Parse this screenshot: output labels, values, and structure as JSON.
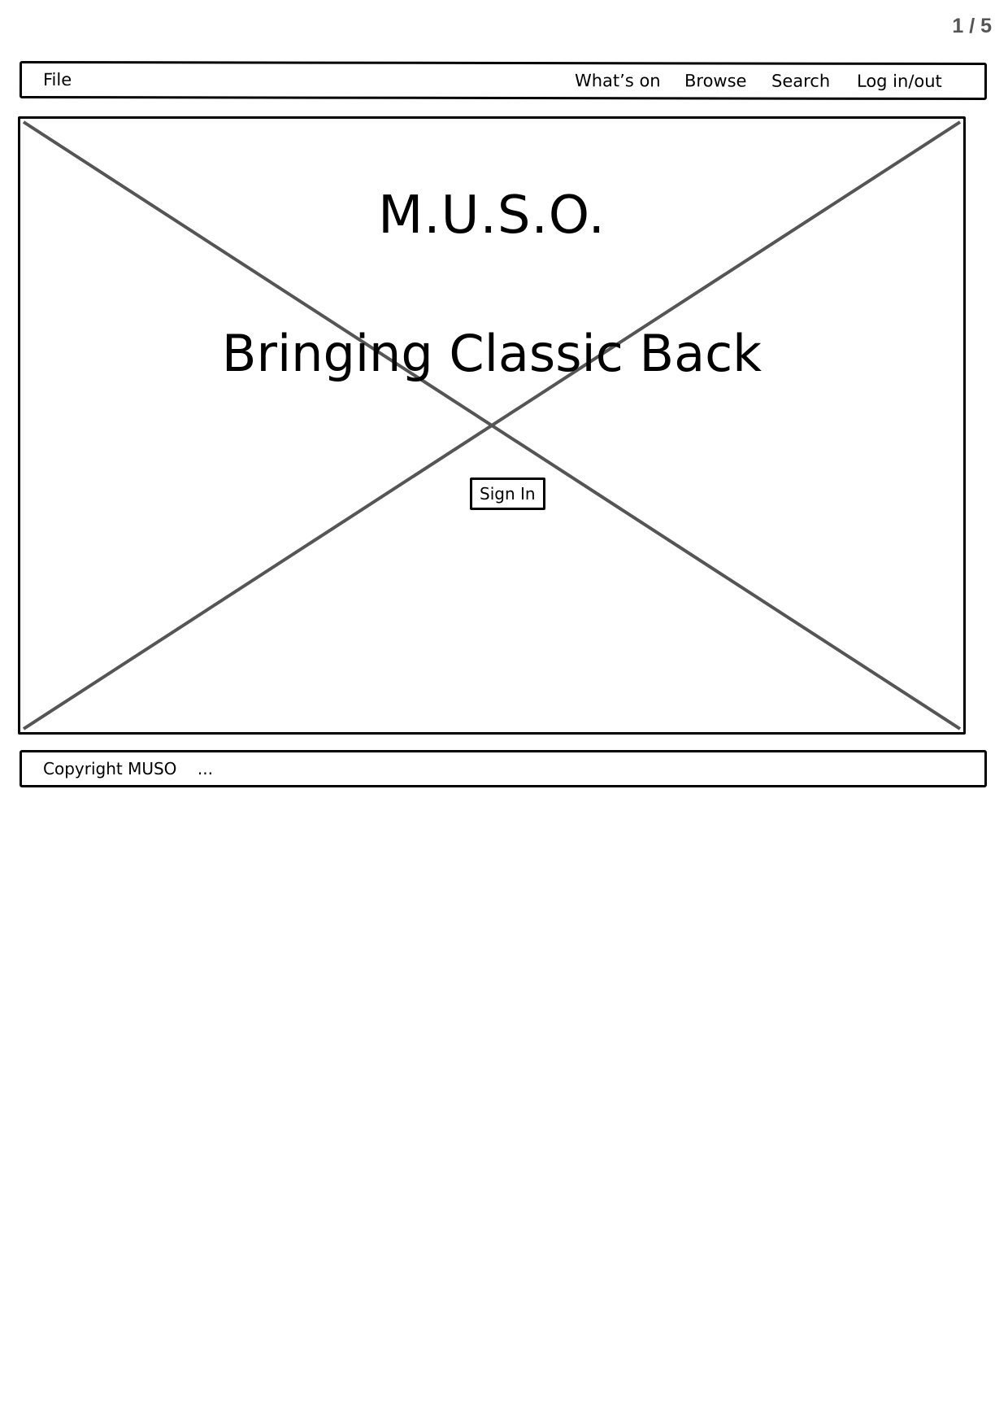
{
  "page_indicator": "1 / 5",
  "nav": {
    "file_label": "File",
    "items": [
      "What’s on",
      "Browse",
      "Search",
      "Log in/out"
    ]
  },
  "hero": {
    "title": "M.U.S.O.",
    "subtitle": "Bringing Classic Back",
    "sign_in_label": "Sign In",
    "placeholder_icon": "image-placeholder-icon"
  },
  "footer": {
    "copyright": "Copyright MUSO",
    "ellipsis": "..."
  },
  "colors": {
    "border": "#000000",
    "placeholder_lines": "#555555",
    "page_indicator": "#555555",
    "background": "#ffffff"
  }
}
